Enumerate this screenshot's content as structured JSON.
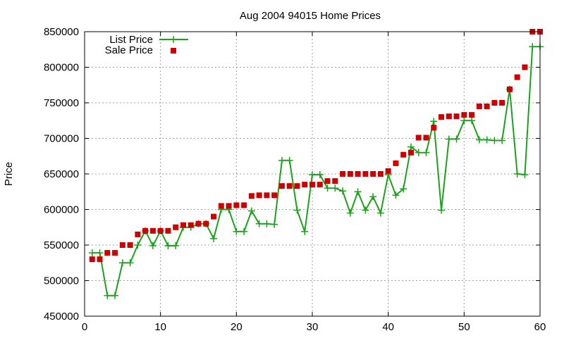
{
  "chart_data": {
    "type": "line",
    "title": "Aug 2004 94015 Home Prices",
    "xlabel": "",
    "ylabel": "Price",
    "xlim": [
      0,
      60
    ],
    "ylim": [
      450000,
      850000
    ],
    "grid": true,
    "legend_position": "top-left",
    "x_ticks": [
      0,
      10,
      20,
      30,
      40,
      50,
      60
    ],
    "y_ticks": [
      450000,
      500000,
      550000,
      600000,
      650000,
      700000,
      750000,
      800000,
      850000
    ],
    "x": [
      1,
      2,
      3,
      4,
      5,
      6,
      7,
      8,
      9,
      10,
      11,
      12,
      13,
      14,
      15,
      16,
      17,
      18,
      19,
      20,
      21,
      22,
      23,
      24,
      25,
      26,
      27,
      28,
      29,
      30,
      31,
      32,
      33,
      34,
      35,
      36,
      37,
      38,
      39,
      40,
      41,
      42,
      43,
      44,
      45,
      46,
      47,
      48,
      49,
      50,
      51,
      52,
      53,
      54,
      55,
      56,
      57,
      58,
      59,
      60
    ],
    "series": [
      {
        "name": "List Price",
        "style": "linespoints",
        "color": "#1aa31a",
        "values": [
          539000,
          539000,
          479000,
          479000,
          525000,
          525000,
          550000,
          570000,
          549000,
          570000,
          549000,
          549000,
          575000,
          575000,
          580000,
          580000,
          559000,
          600000,
          600000,
          569000,
          569000,
          598000,
          580000,
          580000,
          579000,
          669000,
          669000,
          599000,
          569000,
          649000,
          649000,
          630000,
          630000,
          626000,
          595000,
          625000,
          599000,
          618000,
          595000,
          649000,
          620000,
          629000,
          688000,
          680000,
          680000,
          724000,
          599000,
          699000,
          699000,
          725000,
          725000,
          698000,
          698000,
          697000,
          697000,
          769000,
          650000,
          649000,
          829000,
          829000
        ]
      },
      {
        "name": "Sale Price",
        "style": "points",
        "color": "#cc0000",
        "values": [
          530000,
          530000,
          539000,
          539000,
          550000,
          550000,
          565000,
          570000,
          570000,
          570000,
          570000,
          575000,
          578000,
          578000,
          580000,
          580000,
          590000,
          605000,
          605000,
          606000,
          606000,
          619000,
          620000,
          620000,
          620000,
          633000,
          633000,
          633000,
          635000,
          635000,
          635000,
          640000,
          640000,
          650000,
          650000,
          650000,
          650000,
          650000,
          650000,
          654000,
          665000,
          677000,
          680000,
          701000,
          701000,
          715000,
          730000,
          731000,
          731000,
          733000,
          733000,
          745000,
          745000,
          750000,
          750000,
          769000,
          786000,
          800000,
          850000,
          850000
        ]
      }
    ]
  }
}
